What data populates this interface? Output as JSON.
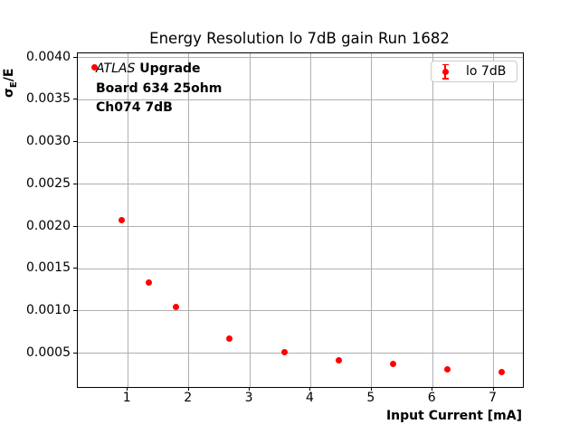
{
  "window": {
    "background_color": "#ffffff"
  },
  "chart_data": {
    "type": "scatter",
    "title": "Energy Resolution lo 7dB gain Run 1682",
    "xlabel": "Input Current [mA]",
    "ylabel": "σE/E",
    "ylabel_parts": {
      "sigma": "σ",
      "sub": "E",
      "rest": "/E"
    },
    "xlim": [
      0.18,
      7.48
    ],
    "ylim": [
      0.0001,
      0.00405
    ],
    "xticks": [
      1,
      2,
      3,
      4,
      5,
      6,
      7
    ],
    "xtick_labels": [
      "1",
      "2",
      "3",
      "4",
      "5",
      "6",
      "7"
    ],
    "yticks": [
      0.0005,
      0.001,
      0.0015,
      0.002,
      0.0025,
      0.003,
      0.0035,
      0.004
    ],
    "ytick_labels": [
      "0.0005",
      "0.0010",
      "0.0015",
      "0.0020",
      "0.0025",
      "0.0030",
      "0.0035",
      "0.0040"
    ],
    "grid": true,
    "grid_color": "#b0b0b0",
    "spine_color": "#000000",
    "series": [
      {
        "name": "lo 7dB",
        "color": "#ff0000",
        "marker": "circle-with-errorbar",
        "points": [
          [
            0.45,
            0.00388
          ],
          [
            0.9,
            0.00208
          ],
          [
            1.34,
            0.00134
          ],
          [
            1.79,
            0.00105
          ],
          [
            2.67,
            0.00067
          ],
          [
            3.57,
            0.00051
          ],
          [
            4.46,
            0.00042
          ],
          [
            5.35,
            0.00037
          ],
          [
            6.24,
            0.00031
          ],
          [
            7.13,
            0.00028
          ]
        ]
      }
    ],
    "legend": {
      "position": "upper right",
      "entries": [
        {
          "label": "lo 7dB",
          "color": "#ff0000"
        }
      ]
    },
    "annotation": {
      "line1_italic": "ATLAS",
      "line1_bold": "Upgrade",
      "line2": "Board 634 25ohm",
      "line3": "Ch074 7dB"
    }
  }
}
